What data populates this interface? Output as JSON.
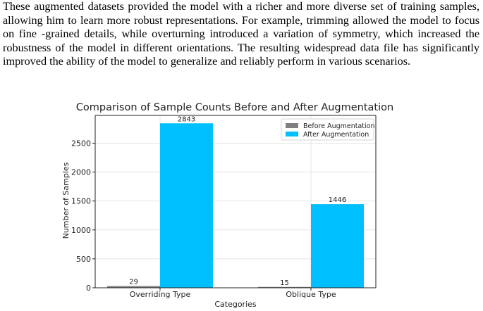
{
  "paragraph": {
    "text": "These augmented datasets provided the model with a richer and more diverse set of training samples, allowing him to learn more robust representations. For example, trimming allowed the model to focus on fine -grained details, while overturning introduced a variation of symmetry, which increased the robustness of the model in different orientations. The resulting widespread data file has significantly improved the ability of the model to generalize and reliably perform in various scenarios."
  },
  "chart_data": {
    "type": "bar",
    "title": "Comparison of Sample Counts Before and After Augmentation",
    "xlabel": "Categories",
    "ylabel": "Number of Samples",
    "categories": [
      "Overriding Type",
      "Oblique Type"
    ],
    "series": [
      {
        "name": "Before Augmentation",
        "values": [
          29,
          15
        ],
        "color": "#808080"
      },
      {
        "name": "After Augmentation",
        "values": [
          2843,
          1446
        ],
        "color": "#00bfff"
      }
    ],
    "ylim": [
      0,
      2980
    ],
    "yticks": [
      0,
      500,
      1000,
      1500,
      2000,
      2500
    ],
    "grid": true,
    "legend": "top-right"
  }
}
